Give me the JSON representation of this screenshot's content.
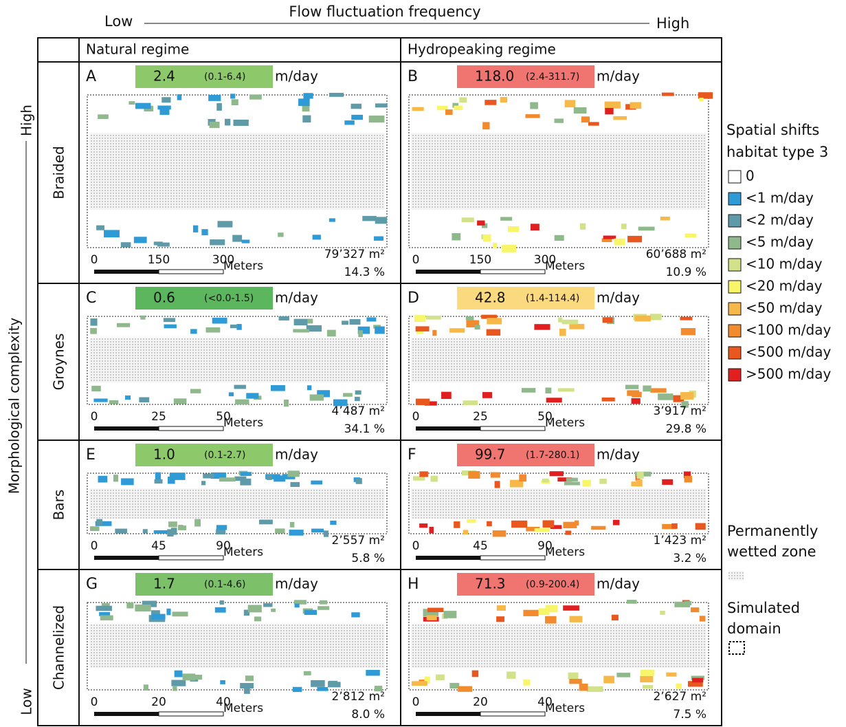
{
  "header": {
    "low": "Low",
    "title": "Flow fluctuation frequency",
    "high": "High"
  },
  "side": {
    "title": "Morphological complexity",
    "high": "High",
    "low": "Low"
  },
  "columns": [
    "Natural regime",
    "Hydropeaking regime"
  ],
  "unit": "m/day",
  "scale_unit": "Meters",
  "rows": [
    {
      "label": "Braided",
      "scale": [
        "0",
        "150",
        "300"
      ],
      "panels": [
        {
          "letter": "A",
          "value": "2.4",
          "range": "(0.1-6.4)",
          "color": "#8dc96a",
          "area": "79’327 m²",
          "percent": "14.3 %"
        },
        {
          "letter": "B",
          "value": "118.0",
          "range": "(2.4-311.7)",
          "color": "#f07470",
          "area": "60’688 m²",
          "percent": "10.9 %"
        }
      ]
    },
    {
      "label": "Groynes",
      "scale": [
        "0",
        "25",
        "50"
      ],
      "panels": [
        {
          "letter": "C",
          "value": "0.6",
          "range": "(<0.0-1.5)",
          "color": "#5bb65e",
          "area": "4’487 m²",
          "percent": "34.1 %"
        },
        {
          "letter": "D",
          "value": "42.8",
          "range": "(1.4-114.4)",
          "color": "#fbd97e",
          "area": "3’917 m²",
          "percent": "29.8 %"
        }
      ]
    },
    {
      "label": "Bars",
      "scale": [
        "0",
        "45",
        "90"
      ],
      "panels": [
        {
          "letter": "E",
          "value": "1.0",
          "range": "(0.1-2.7)",
          "color": "#8dc96a",
          "area": "2’557 m²",
          "percent": "5.8 %"
        },
        {
          "letter": "F",
          "value": "99.7",
          "range": "(1.7-280.1)",
          "color": "#f07470",
          "area": "1’423 m²",
          "percent": "3.2 %"
        }
      ]
    },
    {
      "label": "Channelized",
      "scale": [
        "0",
        "20",
        "40"
      ],
      "panels": [
        {
          "letter": "G",
          "value": "1.7",
          "range": "(0.1-4.6)",
          "color": "#7cc16a",
          "area": "2’812 m²",
          "percent": "8.0 %"
        },
        {
          "letter": "H",
          "value": "71.3",
          "range": "(0.9-200.4)",
          "color": "#f07470",
          "area": "2’627 m²",
          "percent": "7.5 %"
        }
      ]
    }
  ],
  "legend": {
    "title": [
      "Spatial shifts",
      "habitat type 3"
    ],
    "items": [
      {
        "label": "0",
        "color": "#ffffff"
      },
      {
        "label": "<1 m/day",
        "color": "#2e9bd6"
      },
      {
        "label": "<2 m/day",
        "color": "#5f9aa8"
      },
      {
        "label": "<5 m/day",
        "color": "#8fb88c"
      },
      {
        "label": "<10 m/day",
        "color": "#d2e28a"
      },
      {
        "label": "<20 m/day",
        "color": "#f8f56a"
      },
      {
        "label": "<50 m/day",
        "color": "#f7b84a"
      },
      {
        "label": "<100 m/day",
        "color": "#f28b2e"
      },
      {
        "label": "<500 m/day",
        "color": "#e8571d"
      },
      {
        "label": ">500 m/day",
        "color": "#e02020"
      }
    ],
    "wetted": [
      "Permanently",
      "wetted zone"
    ],
    "domain": [
      "Simulated",
      "domain"
    ]
  }
}
